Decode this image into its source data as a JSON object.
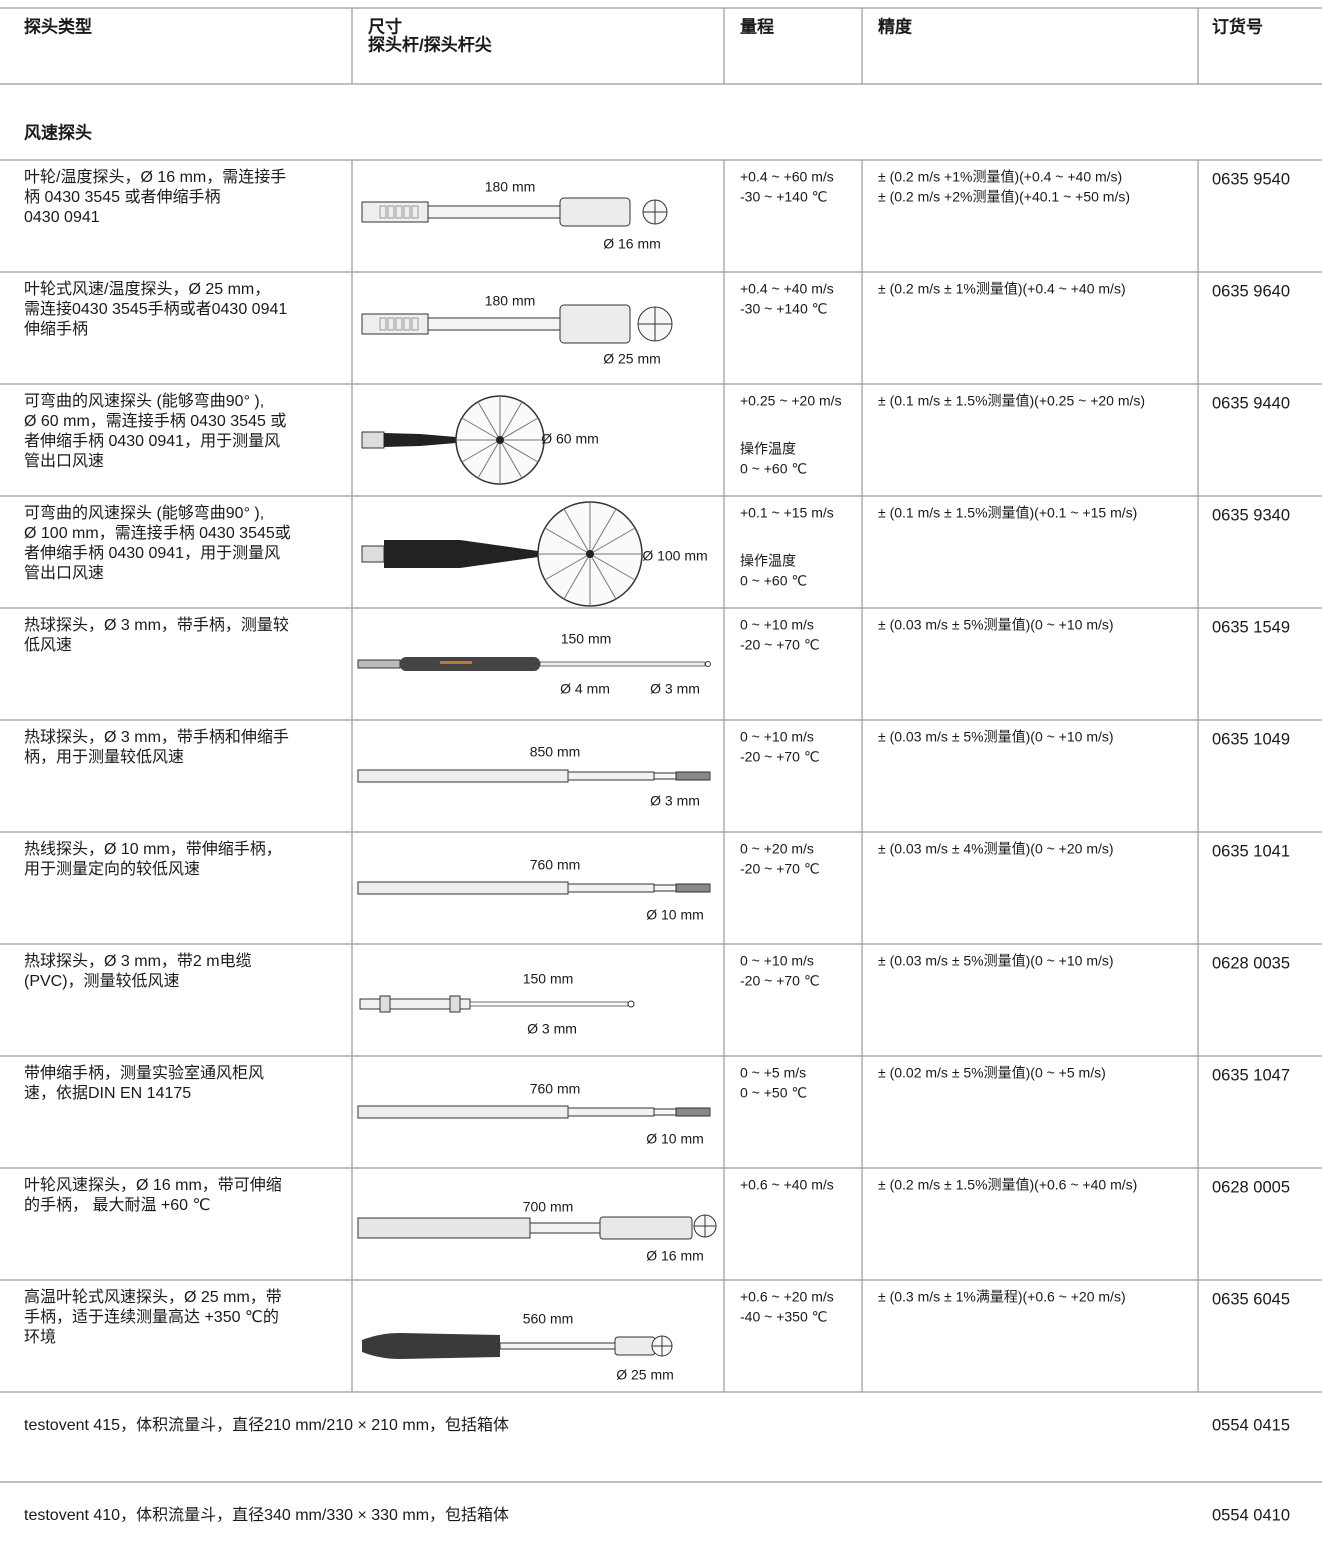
{
  "header": [
    "探头类型",
    [
      "尺寸",
      "探头杆/探头杆尖"
    ],
    "量程",
    "精度",
    "订货号"
  ],
  "section_title": "风速探头",
  "rows": [
    {
      "description": [
        "叶轮/温度探头，Ø 16 mm，需连接手",
        "柄 0430 3545 或者伸缩手柄",
        "0430 0941"
      ],
      "dimensions": [
        "180 mm",
        "Ø 16 mm"
      ],
      "range": [
        "+0.4 ~ +60 m/s",
        "-30 ~ +140 ℃"
      ],
      "accuracy": [
        "± (0.2 m/s +1%测量值)(+0.4 ~ +40 m/s)",
        "± (0.2 m/s +2%测量值)(+40.1 ~ +50 m/s)"
      ],
      "order_no": "0635 9540"
    },
    {
      "description": [
        "叶轮式风速/温度探头，Ø 25 mm，",
        "需连接0430 3545手柄或者0430 0941",
        "伸缩手柄"
      ],
      "dimensions": [
        "180 mm",
        "Ø 25 mm"
      ],
      "range": [
        "+0.4 ~ +40 m/s",
        "-30 ~ +140 ℃"
      ],
      "accuracy": [
        "± (0.2 m/s ± 1%测量值)(+0.4 ~ +40 m/s)"
      ],
      "order_no": "0635 9640"
    },
    {
      "description": [
        "可弯曲的风速探头 (能够弯曲90° ),",
        "Ø 60 mm，需连接手柄 0430 3545 或",
        "者伸缩手柄 0430 0941，用于测量风",
        "管出口风速"
      ],
      "dimensions": [
        "Ø 60 mm"
      ],
      "range": [
        "+0.25 ~ +20 m/s"
      ],
      "operating_temperature": {
        "label": "操作温度",
        "range": "0 ~ +60 ℃"
      },
      "accuracy": [
        "± (0.1 m/s ± 1.5%测量值)(+0.25 ~ +20 m/s)"
      ],
      "order_no": "0635 9440"
    },
    {
      "description": [
        "可弯曲的风速探头 (能够弯曲90° ),",
        "Ø 100 mm，需连接手柄 0430 3545或",
        "者伸缩手柄 0430 0941，用于测量风",
        "管出口风速"
      ],
      "dimensions": [
        "Ø 100 mm"
      ],
      "range": [
        "+0.1 ~ +15 m/s"
      ],
      "operating_temperature": {
        "label": "操作温度",
        "range": "0 ~ +60 ℃"
      },
      "accuracy": [
        "± (0.1 m/s ± 1.5%测量值)(+0.1 ~ +15 m/s)"
      ],
      "order_no": "0635 9340"
    },
    {
      "description": [
        "热球探头，Ø 3 mm，带手柄，测量较",
        "低风速"
      ],
      "dimensions": [
        "150 mm",
        "Ø 4 mm",
        "Ø 3 mm"
      ],
      "range": [
        "0 ~ +10 m/s",
        "-20 ~ +70 ℃"
      ],
      "accuracy": [
        "± (0.03 m/s ± 5%测量值)(0 ~ +10 m/s)"
      ],
      "order_no": "0635 1549"
    },
    {
      "description": [
        "热球探头，Ø 3 mm，带手柄和伸缩手",
        "柄，用于测量较低风速"
      ],
      "dimensions": [
        "850 mm",
        "Ø 3 mm"
      ],
      "range": [
        "0 ~ +10 m/s",
        "-20 ~ +70 ℃"
      ],
      "accuracy": [
        "± (0.03 m/s ± 5%测量值)(0 ~ +10 m/s)"
      ],
      "order_no": "0635 1049"
    },
    {
      "description": [
        "热线探头，Ø 10 mm，带伸缩手柄，",
        "用于测量定向的较低风速"
      ],
      "dimensions": [
        "760 mm",
        "Ø 10 mm"
      ],
      "range": [
        "0 ~ +20 m/s",
        "-20 ~ +70 ℃"
      ],
      "accuracy": [
        "± (0.03 m/s ± 4%测量值)(0 ~ +20 m/s)"
      ],
      "order_no": "0635 1041"
    },
    {
      "description": [
        "热球探头，Ø 3 mm，带2 m电缆",
        "(PVC)，测量较低风速"
      ],
      "dimensions": [
        "150 mm",
        "Ø 3 mm"
      ],
      "range": [
        "0 ~ +10 m/s",
        "-20 ~ +70 ℃"
      ],
      "accuracy": [
        "± (0.03 m/s ± 5%测量值)(0 ~ +10 m/s)"
      ],
      "order_no": "0628 0035"
    },
    {
      "description": [
        "带伸缩手柄，测量实验室通风柜风",
        "速，依据DIN EN 14175"
      ],
      "dimensions": [
        "760 mm",
        "Ø 10 mm"
      ],
      "range": [
        "0 ~ +5 m/s",
        "0 ~ +50 ℃"
      ],
      "accuracy": [
        "± (0.02 m/s ± 5%测量值)(0 ~ +5 m/s)"
      ],
      "order_no": "0635 1047"
    },
    {
      "description": [
        "叶轮风速探头，Ø 16 mm，带可伸缩",
        "的手柄， 最大耐温 +60 ℃"
      ],
      "dimensions": [
        "700 mm",
        "Ø 16 mm"
      ],
      "range": [
        "+0.6 ~ +40 m/s"
      ],
      "accuracy": [
        "± (0.2 m/s ± 1.5%测量值)(+0.6 ~ +40 m/s)"
      ],
      "order_no": "0628 0005"
    },
    {
      "description": [
        "高温叶轮式风速探头，Ø 25 mm，带",
        "手柄，适于连续测量高达 +350 ℃的",
        "环境"
      ],
      "dimensions": [
        "560 mm",
        "Ø 25 mm"
      ],
      "range": [
        "+0.6 ~ +20 m/s",
        "-40 ~ +350 ℃"
      ],
      "accuracy": [
        "± (0.3 m/s ± 1%满量程)(+0.6 ~ +20 m/s)"
      ],
      "order_no": "0635 6045"
    }
  ],
  "accessories": [
    {
      "description": "testovent 415，体积流量斗，直径210 mm/210 × 210 mm，包括箱体",
      "order_no": "0554 0415"
    },
    {
      "description": "testovent 410，体积流量斗，直径340 mm/330 × 330 mm，包括箱体",
      "order_no": "0554 0410"
    }
  ]
}
